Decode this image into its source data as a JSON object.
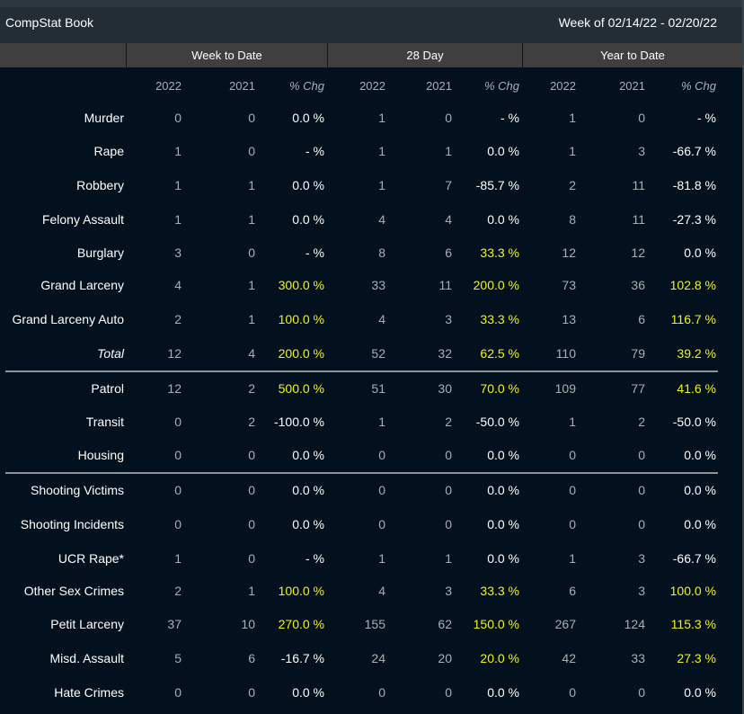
{
  "header": {
    "title": "CompStat Book",
    "week": "Week of 02/14/22 - 02/20/22"
  },
  "groups": [
    "Week to Date",
    "28 Day",
    "Year to Date"
  ],
  "columns": [
    "2022",
    "2021",
    "% Chg",
    "2022",
    "2021",
    "% Chg",
    "2022",
    "2021",
    "% Chg"
  ],
  "colors": {
    "background": "#03111f",
    "increase_highlight": "#f2f21a",
    "number_text": "#a9afb3"
  },
  "rows": [
    {
      "label": "Murder",
      "values": [
        "0",
        "0",
        "0.0 %",
        "1",
        "0",
        "- %",
        "1",
        "0",
        "- %"
      ]
    },
    {
      "label": "Rape",
      "values": [
        "1",
        "0",
        "- %",
        "1",
        "1",
        "0.0 %",
        "1",
        "3",
        "-66.7 %"
      ]
    },
    {
      "label": "Robbery",
      "values": [
        "1",
        "1",
        "0.0 %",
        "1",
        "7",
        "-85.7 %",
        "2",
        "11",
        "-81.8 %"
      ]
    },
    {
      "label": "Felony Assault",
      "values": [
        "1",
        "1",
        "0.0 %",
        "4",
        "4",
        "0.0 %",
        "8",
        "11",
        "-27.3 %"
      ]
    },
    {
      "label": "Burglary",
      "values": [
        "3",
        "0",
        "- %",
        "8",
        "6",
        "33.3 %",
        "12",
        "12",
        "0.0 %"
      ]
    },
    {
      "label": "Grand Larceny",
      "values": [
        "4",
        "1",
        "300.0 %",
        "33",
        "11",
        "200.0 %",
        "73",
        "36",
        "102.8 %"
      ]
    },
    {
      "label": "Grand Larceny Auto",
      "values": [
        "2",
        "1",
        "100.0 %",
        "4",
        "3",
        "33.3 %",
        "13",
        "6",
        "116.7 %"
      ]
    },
    {
      "label": "Total",
      "values": [
        "12",
        "4",
        "200.0 %",
        "52",
        "32",
        "62.5 %",
        "110",
        "79",
        "39.2 %"
      ]
    },
    {
      "label": "Patrol",
      "values": [
        "12",
        "2",
        "500.0 %",
        "51",
        "30",
        "70.0 %",
        "109",
        "77",
        "41.6 %"
      ]
    },
    {
      "label": "Transit",
      "values": [
        "0",
        "2",
        "-100.0 %",
        "1",
        "2",
        "-50.0 %",
        "1",
        "2",
        "-50.0 %"
      ]
    },
    {
      "label": "Housing",
      "values": [
        "0",
        "0",
        "0.0 %",
        "0",
        "0",
        "0.0 %",
        "0",
        "0",
        "0.0 %"
      ]
    },
    {
      "label": "Shooting Victims",
      "values": [
        "0",
        "0",
        "0.0 %",
        "0",
        "0",
        "0.0 %",
        "0",
        "0",
        "0.0 %"
      ]
    },
    {
      "label": "Shooting Incidents",
      "values": [
        "0",
        "0",
        "0.0 %",
        "0",
        "0",
        "0.0 %",
        "0",
        "0",
        "0.0 %"
      ]
    },
    {
      "label": "UCR Rape*",
      "values": [
        "1",
        "0",
        "- %",
        "1",
        "1",
        "0.0 %",
        "1",
        "3",
        "-66.7 %"
      ]
    },
    {
      "label": "Other Sex Crimes",
      "values": [
        "2",
        "1",
        "100.0 %",
        "4",
        "3",
        "33.3 %",
        "6",
        "3",
        "100.0 %"
      ]
    },
    {
      "label": "Petit Larceny",
      "values": [
        "37",
        "10",
        "270.0 %",
        "155",
        "62",
        "150.0 %",
        "267",
        "124",
        "115.3 %"
      ]
    },
    {
      "label": "Misd. Assault",
      "values": [
        "5",
        "6",
        "-16.7 %",
        "24",
        "20",
        "20.0 %",
        "42",
        "33",
        "27.3 %"
      ]
    },
    {
      "label": "Hate Crimes",
      "values": [
        "0",
        "0",
        "0.0 %",
        "0",
        "0",
        "0.0 %",
        "0",
        "0",
        "0.0 %"
      ]
    }
  ]
}
